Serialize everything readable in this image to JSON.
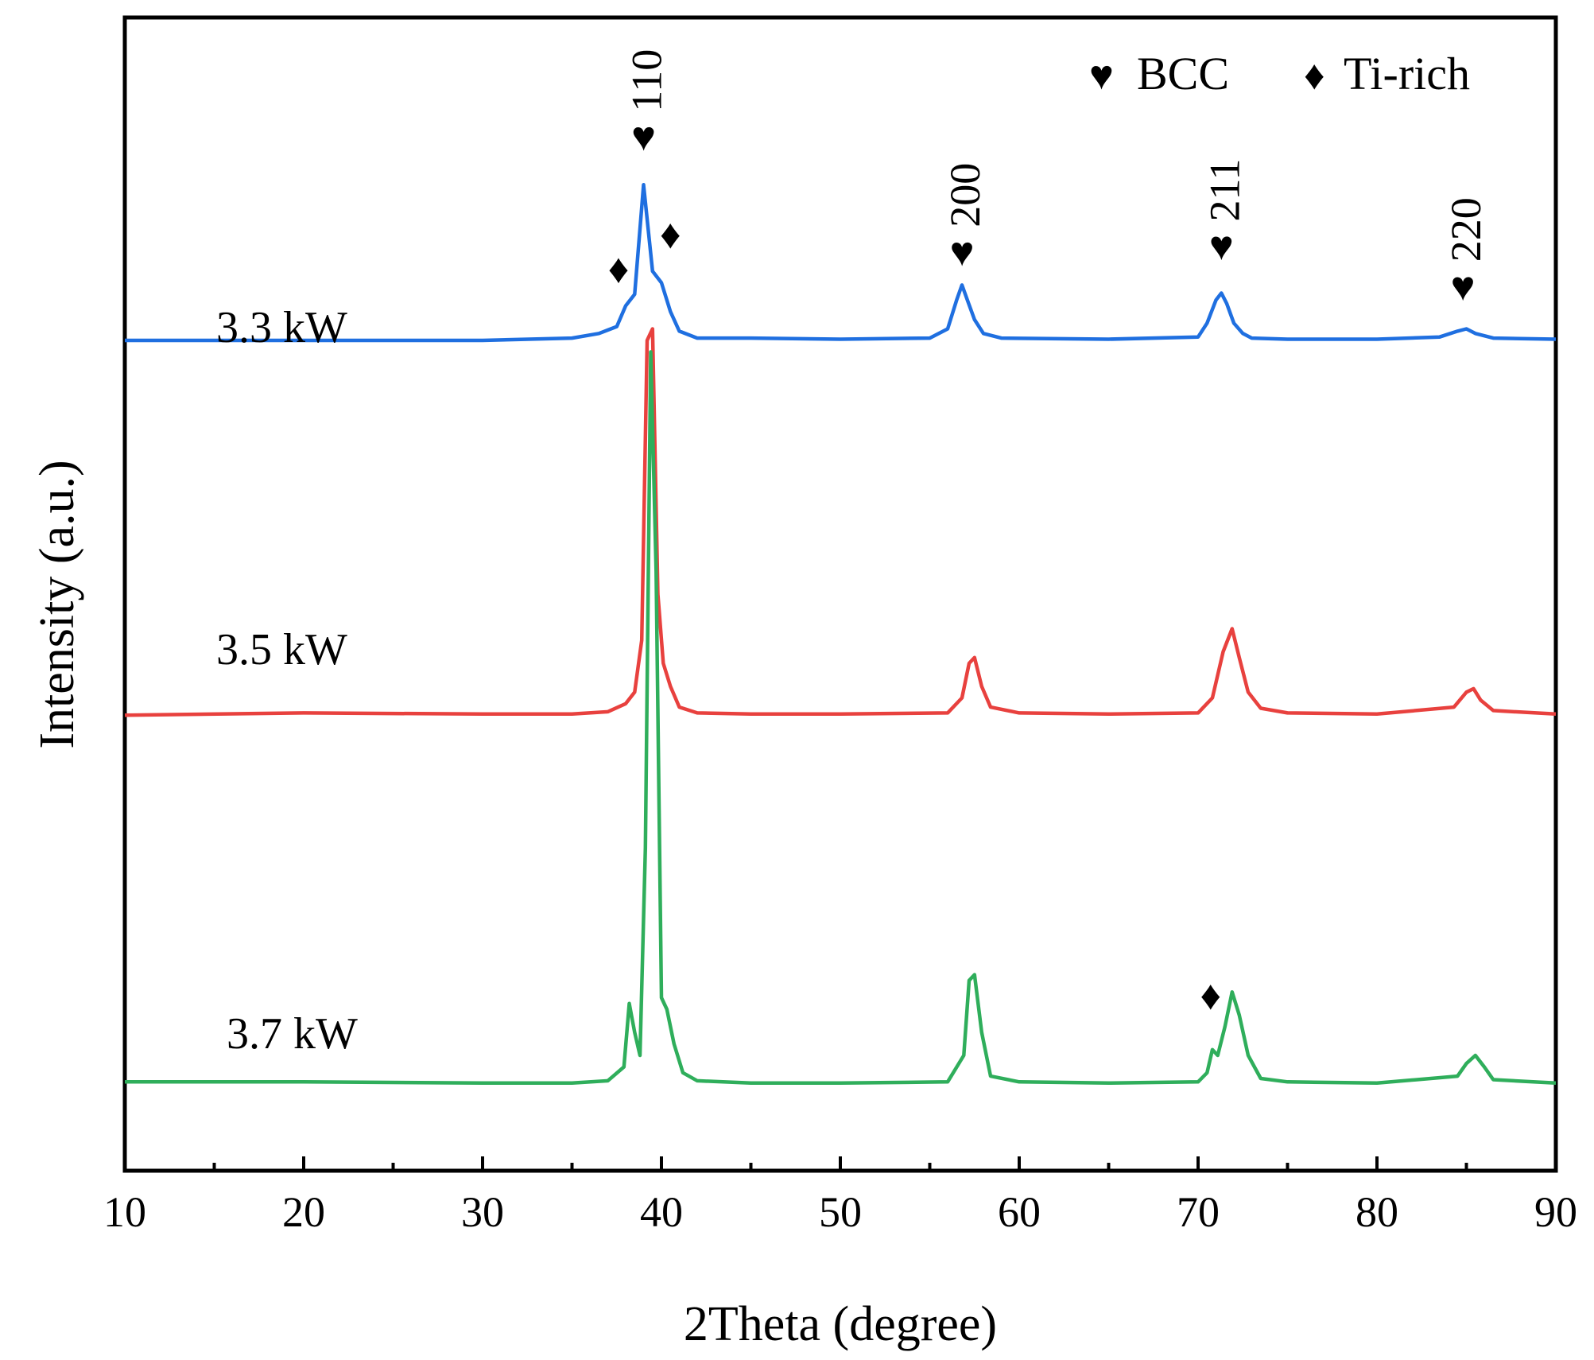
{
  "chart_data": {
    "type": "line",
    "title": "",
    "xlabel": "2Theta (degree)",
    "ylabel": "Intensity (a.u.)",
    "xlim": [
      10,
      90
    ],
    "ylim": [
      0,
      1
    ],
    "x_ticks": [
      10,
      20,
      30,
      40,
      50,
      60,
      70,
      80,
      90
    ],
    "x_tick_labels": [
      "10",
      "20",
      "30",
      "40",
      "50",
      "60",
      "70",
      "80",
      "90"
    ],
    "x_minor_ticks": [
      15,
      25,
      35,
      45,
      55,
      65,
      75,
      85
    ],
    "legend": {
      "position": "top-right",
      "items": [
        {
          "symbol": "♥",
          "label": "BCC"
        },
        {
          "symbol": "♦",
          "label": "Ti-rich"
        }
      ]
    },
    "series": [
      {
        "name": "3.3 kW",
        "label": "3.3 kW",
        "color": "#1f6fe0",
        "baseline": 0.72,
        "x": [
          10,
          20,
          30,
          35,
          36.5,
          37.5,
          38.0,
          38.5,
          39.0,
          39.5,
          40.0,
          40.5,
          41.0,
          42.0,
          45,
          50,
          55,
          56.0,
          56.5,
          56.8,
          57.1,
          57.5,
          58.0,
          59,
          65,
          70,
          70.5,
          71.0,
          71.3,
          71.6,
          72.0,
          72.5,
          73.0,
          75,
          80,
          83.5,
          84.5,
          85.0,
          85.5,
          86.5,
          90
        ],
        "y": [
          0.72,
          0.72,
          0.72,
          0.722,
          0.726,
          0.732,
          0.75,
          0.76,
          0.855,
          0.78,
          0.77,
          0.745,
          0.728,
          0.722,
          0.722,
          0.721,
          0.722,
          0.73,
          0.755,
          0.768,
          0.755,
          0.738,
          0.726,
          0.722,
          0.721,
          0.723,
          0.735,
          0.755,
          0.761,
          0.752,
          0.735,
          0.726,
          0.722,
          0.721,
          0.721,
          0.723,
          0.728,
          0.73,
          0.726,
          0.722,
          0.721
        ]
      },
      {
        "name": "3.5 kW",
        "label": "3.5 kW",
        "color": "#e8413e",
        "baseline": 0.395,
        "x": [
          10,
          20,
          30,
          35,
          37,
          38.0,
          38.5,
          38.9,
          39.2,
          39.5,
          39.8,
          40.1,
          40.5,
          41.0,
          42,
          45,
          50,
          56,
          56.8,
          57.2,
          57.5,
          57.9,
          58.4,
          60,
          65,
          70,
          70.8,
          71.4,
          71.9,
          72.3,
          72.8,
          73.5,
          75,
          80,
          84.3,
          85.0,
          85.4,
          85.8,
          86.5,
          90
        ],
        "y": [
          0.395,
          0.397,
          0.396,
          0.396,
          0.398,
          0.405,
          0.415,
          0.46,
          0.72,
          0.73,
          0.5,
          0.44,
          0.42,
          0.402,
          0.397,
          0.396,
          0.396,
          0.397,
          0.41,
          0.44,
          0.445,
          0.42,
          0.402,
          0.397,
          0.396,
          0.397,
          0.41,
          0.45,
          0.47,
          0.445,
          0.415,
          0.401,
          0.397,
          0.396,
          0.402,
          0.415,
          0.418,
          0.408,
          0.399,
          0.396
        ]
      },
      {
        "name": "3.7 kW",
        "label": "3.7 kW",
        "color": "#2fae5b",
        "baseline": 0.075,
        "x": [
          10,
          20,
          30,
          35,
          37,
          37.9,
          38.2,
          38.5,
          38.8,
          39.1,
          39.4,
          39.7,
          40.0,
          40.3,
          40.7,
          41.2,
          42,
          45,
          50,
          56,
          56.9,
          57.2,
          57.5,
          57.9,
          58.4,
          60,
          65,
          70,
          70.5,
          70.8,
          71.1,
          71.5,
          71.9,
          72.3,
          72.8,
          73.5,
          75,
          80,
          84.5,
          85.0,
          85.5,
          86.0,
          86.5,
          90
        ],
        "y": [
          0.077,
          0.077,
          0.076,
          0.076,
          0.078,
          0.09,
          0.145,
          0.12,
          0.1,
          0.28,
          0.71,
          0.52,
          0.15,
          0.14,
          0.11,
          0.085,
          0.078,
          0.076,
          0.076,
          0.077,
          0.1,
          0.165,
          0.17,
          0.12,
          0.082,
          0.077,
          0.076,
          0.077,
          0.085,
          0.105,
          0.1,
          0.125,
          0.155,
          0.135,
          0.1,
          0.08,
          0.077,
          0.076,
          0.082,
          0.093,
          0.1,
          0.09,
          0.079,
          0.076
        ]
      }
    ],
    "annotations": [
      {
        "symbol": "♥",
        "label": "110",
        "x": 39.0,
        "y": 0.885,
        "rotate": true
      },
      {
        "symbol": "♦",
        "label": "",
        "x": 37.6,
        "y": 0.77,
        "rotate": false
      },
      {
        "symbol": "♦",
        "label": "",
        "x": 40.5,
        "y": 0.8,
        "rotate": false
      },
      {
        "symbol": "♥",
        "label": "200",
        "x": 56.8,
        "y": 0.785,
        "rotate": true
      },
      {
        "symbol": "♥",
        "label": "211",
        "x": 71.3,
        "y": 0.79,
        "rotate": true
      },
      {
        "symbol": "♥",
        "label": "220",
        "x": 84.8,
        "y": 0.755,
        "rotate": true
      },
      {
        "symbol": "♦",
        "label": "",
        "x": 70.7,
        "y": 0.14,
        "rotate": false
      }
    ]
  }
}
